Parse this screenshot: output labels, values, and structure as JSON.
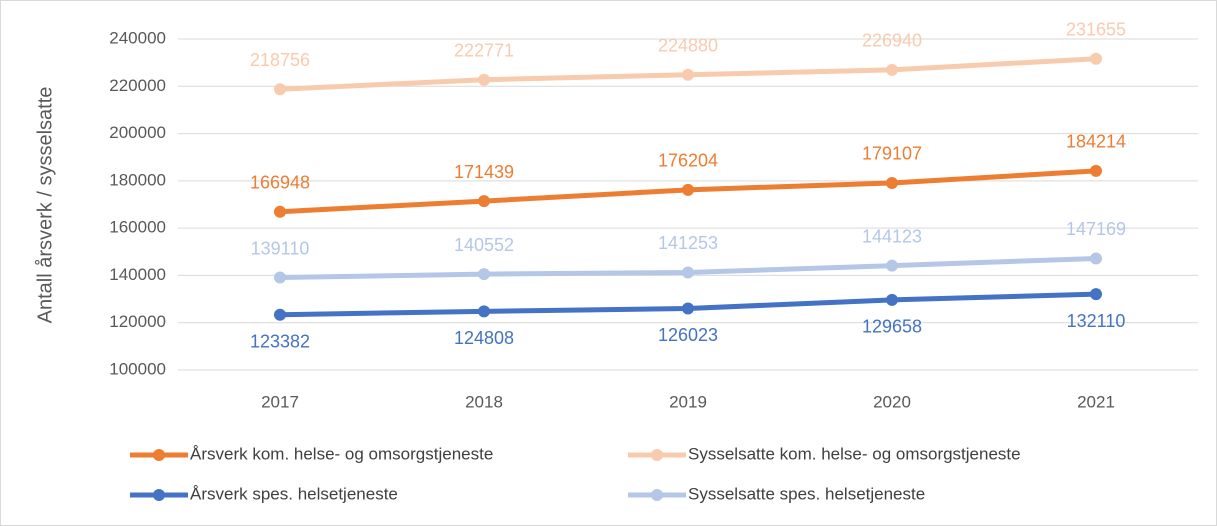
{
  "chart_data": {
    "type": "line",
    "y_label": "Antall årsverk / sysselsatte",
    "categories": [
      "2017",
      "2018",
      "2019",
      "2020",
      "2021"
    ],
    "series": [
      {
        "name": "Årsverk kom. helse- og omsorgstjeneste",
        "color": "#ed7d31",
        "values": [
          166948,
          171439,
          176204,
          179107,
          184214
        ]
      },
      {
        "name": "Sysselsatte kom. helse- og omsorgstjeneste",
        "color": "#f8cbad",
        "values": [
          218756,
          222771,
          224880,
          226940,
          231655
        ]
      },
      {
        "name": "Årsverk spes. helsetjeneste",
        "color": "#4472c4",
        "values": [
          123382,
          124808,
          126023,
          129658,
          132110
        ]
      },
      {
        "name": "Sysselsatte spes. helsetjeneste",
        "color": "#b4c7e7",
        "values": [
          139110,
          140552,
          141253,
          144123,
          147169
        ]
      }
    ],
    "ylim": [
      100000,
      240000
    ],
    "yticks": [
      100000,
      120000,
      140000,
      160000,
      180000,
      200000,
      220000,
      240000
    ],
    "grid": true
  }
}
